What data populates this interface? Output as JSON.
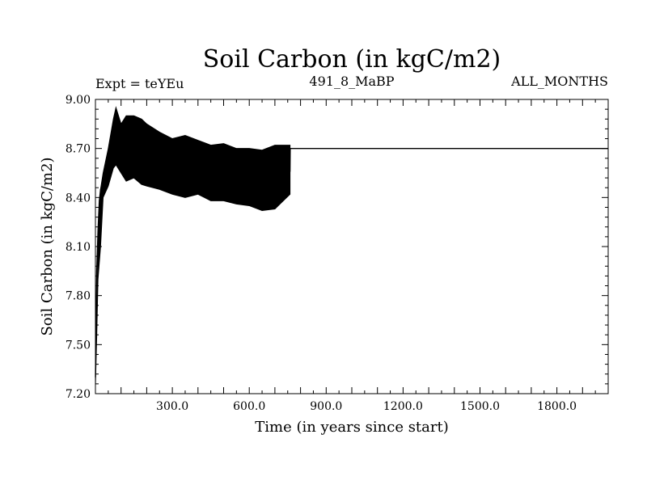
{
  "chart_data": {
    "type": "line",
    "title": "Soil Carbon (in kgC/m2)",
    "subtitle_left": "Expt = teYEu",
    "subtitle_center": "491_8_MaBP",
    "subtitle_right": "ALL_MONTHS",
    "xlabel": "Time (in years since start)",
    "ylabel": "Soil Carbon (in kgC/m2)",
    "xlim": [
      0,
      2000
    ],
    "ylim": [
      7.2,
      9.0
    ],
    "x_ticks": [
      300,
      600,
      900,
      1200,
      1500,
      1800
    ],
    "x_tick_labels": [
      "300.0",
      "600.0",
      "900.0",
      "1200.0",
      "1500.0",
      "1800.0"
    ],
    "y_ticks": [
      7.2,
      7.5,
      7.8,
      8.1,
      8.4,
      8.7,
      9.0
    ],
    "y_tick_labels": [
      "7.20",
      "7.50",
      "7.80",
      "8.10",
      "8.40",
      "8.70",
      "9.00"
    ],
    "grid": false,
    "series": [
      {
        "color": "#000000",
        "x": [
          0,
          2,
          5,
          10,
          15,
          20,
          30,
          40,
          50,
          60,
          70,
          80,
          100,
          120,
          140,
          160,
          180,
          200,
          220,
          250,
          280,
          300,
          330,
          360,
          400,
          440,
          480,
          520,
          560,
          600,
          640,
          680,
          720,
          759,
          760,
          800,
          1000,
          1200,
          1400,
          1600,
          1800,
          2000
        ],
        "y": [
          7.3,
          7.6,
          7.95,
          8.2,
          8.38,
          8.45,
          8.5,
          8.55,
          8.6,
          8.65,
          8.7,
          8.72,
          8.68,
          8.67,
          8.69,
          8.66,
          8.65,
          8.66,
          8.63,
          8.62,
          8.64,
          8.6,
          8.58,
          8.6,
          8.57,
          8.58,
          8.55,
          8.56,
          8.53,
          8.52,
          8.53,
          8.51,
          8.55,
          8.56,
          8.7,
          8.7,
          8.7,
          8.7,
          8.7,
          8.7,
          8.7,
          8.7
        ],
        "envelope_x": [
          0,
          5,
          10,
          20,
          30,
          50,
          70,
          80,
          100,
          120,
          150,
          180,
          200,
          250,
          300,
          350,
          400,
          450,
          500,
          550,
          600,
          650,
          700,
          759
        ],
        "envelope_low": [
          7.25,
          7.55,
          7.9,
          8.1,
          8.4,
          8.47,
          8.58,
          8.6,
          8.55,
          8.5,
          8.52,
          8.48,
          8.47,
          8.45,
          8.42,
          8.4,
          8.42,
          8.38,
          8.38,
          8.36,
          8.35,
          8.32,
          8.33,
          8.42
        ],
        "envelope_high": [
          7.35,
          7.65,
          8.1,
          8.45,
          8.55,
          8.7,
          8.88,
          8.95,
          8.85,
          8.9,
          8.9,
          8.88,
          8.85,
          8.8,
          8.76,
          8.78,
          8.75,
          8.72,
          8.73,
          8.7,
          8.7,
          8.69,
          8.72,
          8.72
        ]
      }
    ]
  }
}
